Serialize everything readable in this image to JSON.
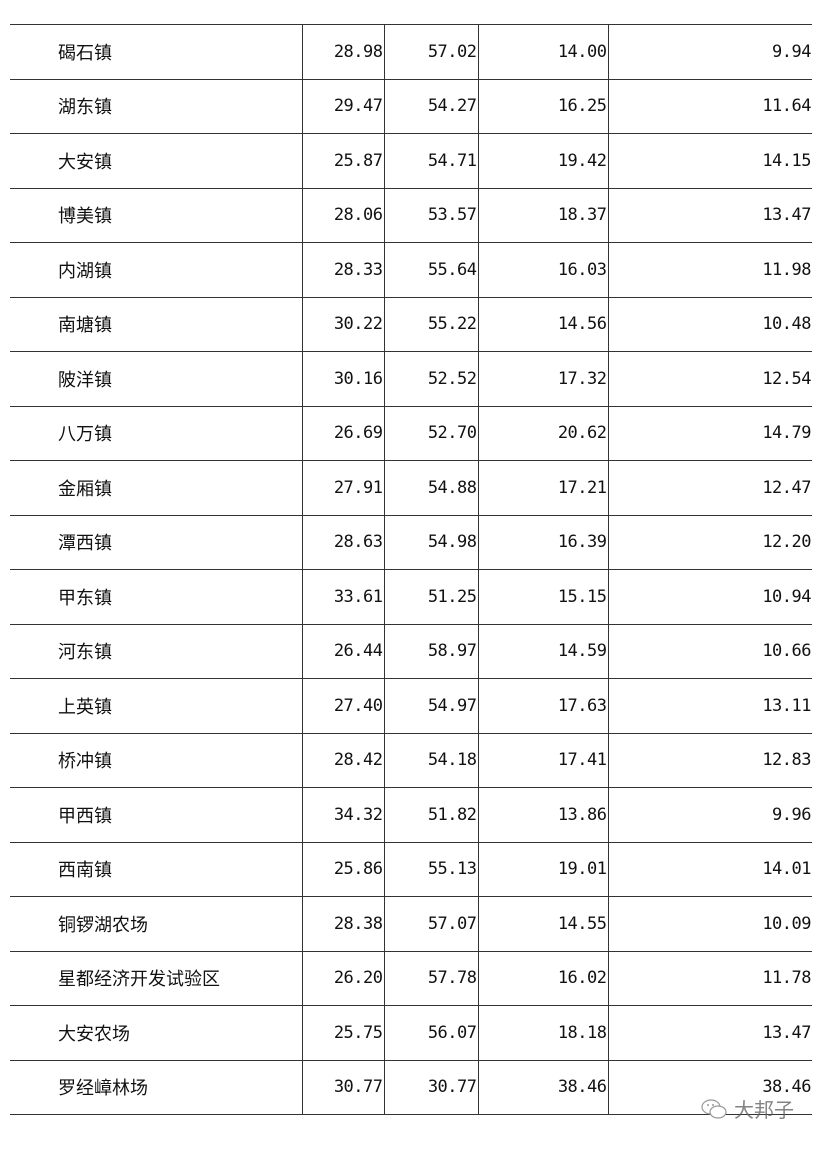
{
  "table": {
    "rows": [
      {
        "name": "碣石镇",
        "v": [
          "28.98",
          "57.02",
          "14.00",
          "9.94"
        ]
      },
      {
        "name": "湖东镇",
        "v": [
          "29.47",
          "54.27",
          "16.25",
          "11.64"
        ]
      },
      {
        "name": "大安镇",
        "v": [
          "25.87",
          "54.71",
          "19.42",
          "14.15"
        ]
      },
      {
        "name": "博美镇",
        "v": [
          "28.06",
          "53.57",
          "18.37",
          "13.47"
        ]
      },
      {
        "name": "内湖镇",
        "v": [
          "28.33",
          "55.64",
          "16.03",
          "11.98"
        ]
      },
      {
        "name": "南塘镇",
        "v": [
          "30.22",
          "55.22",
          "14.56",
          "10.48"
        ]
      },
      {
        "name": "陂洋镇",
        "v": [
          "30.16",
          "52.52",
          "17.32",
          "12.54"
        ]
      },
      {
        "name": "八万镇",
        "v": [
          "26.69",
          "52.70",
          "20.62",
          "14.79"
        ]
      },
      {
        "name": "金厢镇",
        "v": [
          "27.91",
          "54.88",
          "17.21",
          "12.47"
        ]
      },
      {
        "name": "潭西镇",
        "v": [
          "28.63",
          "54.98",
          "16.39",
          "12.20"
        ]
      },
      {
        "name": "甲东镇",
        "v": [
          "33.61",
          "51.25",
          "15.15",
          "10.94"
        ]
      },
      {
        "name": "河东镇",
        "v": [
          "26.44",
          "58.97",
          "14.59",
          "10.66"
        ]
      },
      {
        "name": "上英镇",
        "v": [
          "27.40",
          "54.97",
          "17.63",
          "13.11"
        ]
      },
      {
        "name": "桥冲镇",
        "v": [
          "28.42",
          "54.18",
          "17.41",
          "12.83"
        ]
      },
      {
        "name": "甲西镇",
        "v": [
          "34.32",
          "51.82",
          "13.86",
          "9.96"
        ]
      },
      {
        "name": "西南镇",
        "v": [
          "25.86",
          "55.13",
          "19.01",
          "14.01"
        ]
      },
      {
        "name": "铜锣湖农场",
        "v": [
          "28.38",
          "57.07",
          "14.55",
          "10.09"
        ]
      },
      {
        "name": "星都经济开发试验区",
        "v": [
          "26.20",
          "57.78",
          "16.02",
          "11.78"
        ]
      },
      {
        "name": "大安农场",
        "v": [
          "25.75",
          "56.07",
          "18.18",
          "13.47"
        ]
      },
      {
        "name": "罗经嶂林场",
        "v": [
          "30.77",
          "30.77",
          "38.46",
          "38.46"
        ]
      }
    ]
  },
  "watermark": {
    "text": "大邦子",
    "icon": "wechat-icon"
  }
}
